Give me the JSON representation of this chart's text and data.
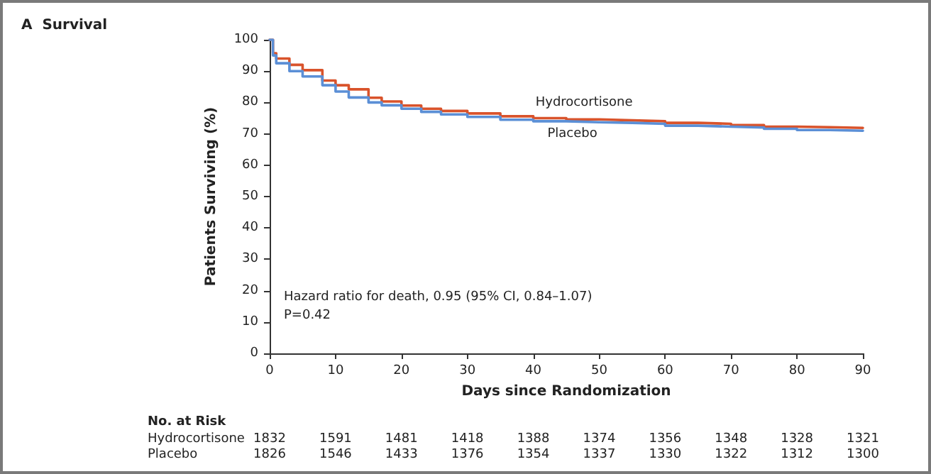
{
  "chart_data": {
    "type": "step",
    "title": "A  Survival",
    "xlabel": "Days since Randomization",
    "ylabel": "Patients Surviving (%)",
    "xlim": [
      0,
      90
    ],
    "xticks": [
      0,
      10,
      20,
      30,
      40,
      50,
      60,
      70,
      80,
      90
    ],
    "ylim": [
      0,
      100
    ],
    "yticks": [
      0,
      10,
      20,
      30,
      40,
      50,
      60,
      70,
      80,
      90,
      100
    ],
    "grid": false,
    "legend": false,
    "marker": "none",
    "line_style": "solid",
    "series": [
      {
        "name": "Hydrocortisone",
        "color": "#d9532b",
        "x": [
          0,
          0.5,
          1,
          3,
          5,
          8,
          10,
          12,
          15,
          17,
          20,
          23,
          26,
          30,
          35,
          40,
          45,
          50,
          55,
          60,
          65,
          70,
          75,
          80,
          85,
          90
        ],
        "values": [
          100,
          95.7,
          94,
          92,
          90.3,
          87,
          85.5,
          84.2,
          81.5,
          80.3,
          79,
          78,
          77.3,
          76.5,
          75.6,
          75,
          74.6,
          74.3,
          74,
          73.5,
          73.2,
          72.8,
          72.3,
          72.1,
          71.9,
          71.8
        ]
      },
      {
        "name": "Placebo",
        "color": "#5b8fd6",
        "x": [
          0,
          0.5,
          1,
          3,
          5,
          8,
          10,
          12,
          15,
          17,
          20,
          23,
          26,
          30,
          35,
          40,
          45,
          50,
          55,
          60,
          65,
          70,
          75,
          80,
          85,
          90
        ],
        "values": [
          100,
          95,
          92.5,
          90,
          88.3,
          85.5,
          83.5,
          81.6,
          80,
          79.1,
          78,
          77,
          76.2,
          75.4,
          74.5,
          74,
          73.7,
          73.5,
          73.2,
          72.6,
          72.3,
          72,
          71.6,
          71.2,
          71,
          70.8
        ]
      }
    ],
    "annotations": [
      "Hazard ratio for death, 0.95 (95% CI, 0.84–1.07)",
      "P=0.42",
      "No. at Risk",
      "Hydrocortisone",
      "1832",
      "1591",
      "1481",
      "1418",
      "1388",
      "1374",
      "1356",
      "1348",
      "1328",
      "1321",
      "Placebo",
      "1826",
      "1546",
      "1433",
      "1376",
      "1354",
      "1337",
      "1330",
      "1322",
      "1312",
      "1300"
    ]
  }
}
